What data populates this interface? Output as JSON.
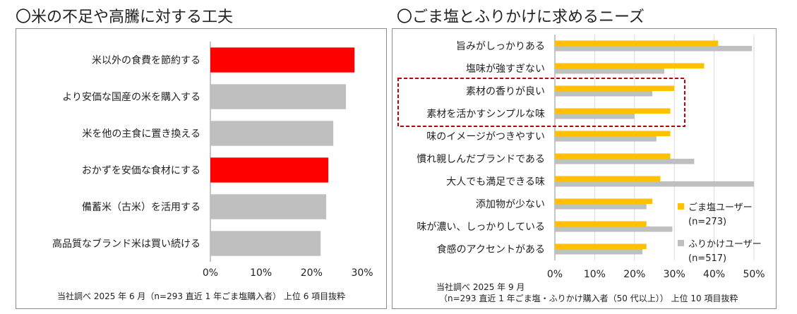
{
  "left_title": "〇米の不足や高騰に対する工夫",
  "right_title": "〇ごま塩とふりかけに求めるニーズ",
  "left_note": "当社調べ 2025 年 6 月（n=293 直近 1 年ごま塩購入者） 上位 6 項目抜粋",
  "right_note_line1": "当社調べ 2025 年 9 月",
  "right_note_line2": "（n=293 直近 1 年ごま塩・ふりかけ購入者（50 代以上）） 上位 10 項目抜粋",
  "legend": {
    "series1_name": "ごま塩ユーザー",
    "series1_n": "(n=273)",
    "series2_name": "ふりかけユーザー",
    "series2_n": "(n=517)"
  },
  "colors": {
    "highlight": "#ff0000",
    "gray": "#bfbfbf",
    "yellow": "#ffc000",
    "dashed_box": "#c00000",
    "axis": "#8c8c8c"
  },
  "chart_data": [
    {
      "type": "bar",
      "orientation": "horizontal",
      "title": "〇米の不足や高騰に対する工夫",
      "categories": [
        "米以外の食費を節約する",
        "より安価な国産の米を購入する",
        "米を他の主食に置き換える",
        "おかずを安価な食材にする",
        "備蓄米（古米）を活用する",
        "高品質なブランド米は買い続ける"
      ],
      "values": [
        28.5,
        26.8,
        24.3,
        23.3,
        22.9,
        21.8
      ],
      "highlighted": [
        true,
        false,
        false,
        true,
        false,
        false
      ],
      "xlim": [
        0,
        30
      ],
      "xticks": [
        "0%",
        "10%",
        "20%",
        "30%"
      ],
      "grid": false,
      "legend": "none"
    },
    {
      "type": "bar",
      "orientation": "horizontal",
      "title": "〇ごま塩とふりかけに求めるニーズ",
      "categories": [
        "旨みがしっかりある",
        "塩味が強すぎない",
        "素材の香りが良い",
        "素材を活かすシンプルな味",
        "味のイメージがつきやすい",
        "慣れ親しんだブランドである",
        "大人でも満足できる味",
        "添加物が少ない",
        "味が濃い、しっかりしている",
        "食感のアクセントがある"
      ],
      "series": [
        {
          "name": "ごま塩ユーザー",
          "values": [
            41,
            37.5,
            30,
            29,
            29,
            29,
            26.5,
            24.5,
            23,
            23
          ]
        },
        {
          "name": "ふりかけユーザー",
          "values": [
            49.5,
            27.5,
            24.5,
            20,
            25.5,
            35,
            50,
            23,
            29.5,
            22
          ]
        }
      ],
      "highlighted_categories": [
        "素材の香りが良い",
        "素材を活かすシンプルな味"
      ],
      "xlim": [
        0,
        50
      ],
      "xticks": [
        "0%",
        "10%",
        "20%",
        "30%",
        "40%",
        "50%"
      ],
      "grid": true,
      "legend": "bottom-right"
    }
  ]
}
